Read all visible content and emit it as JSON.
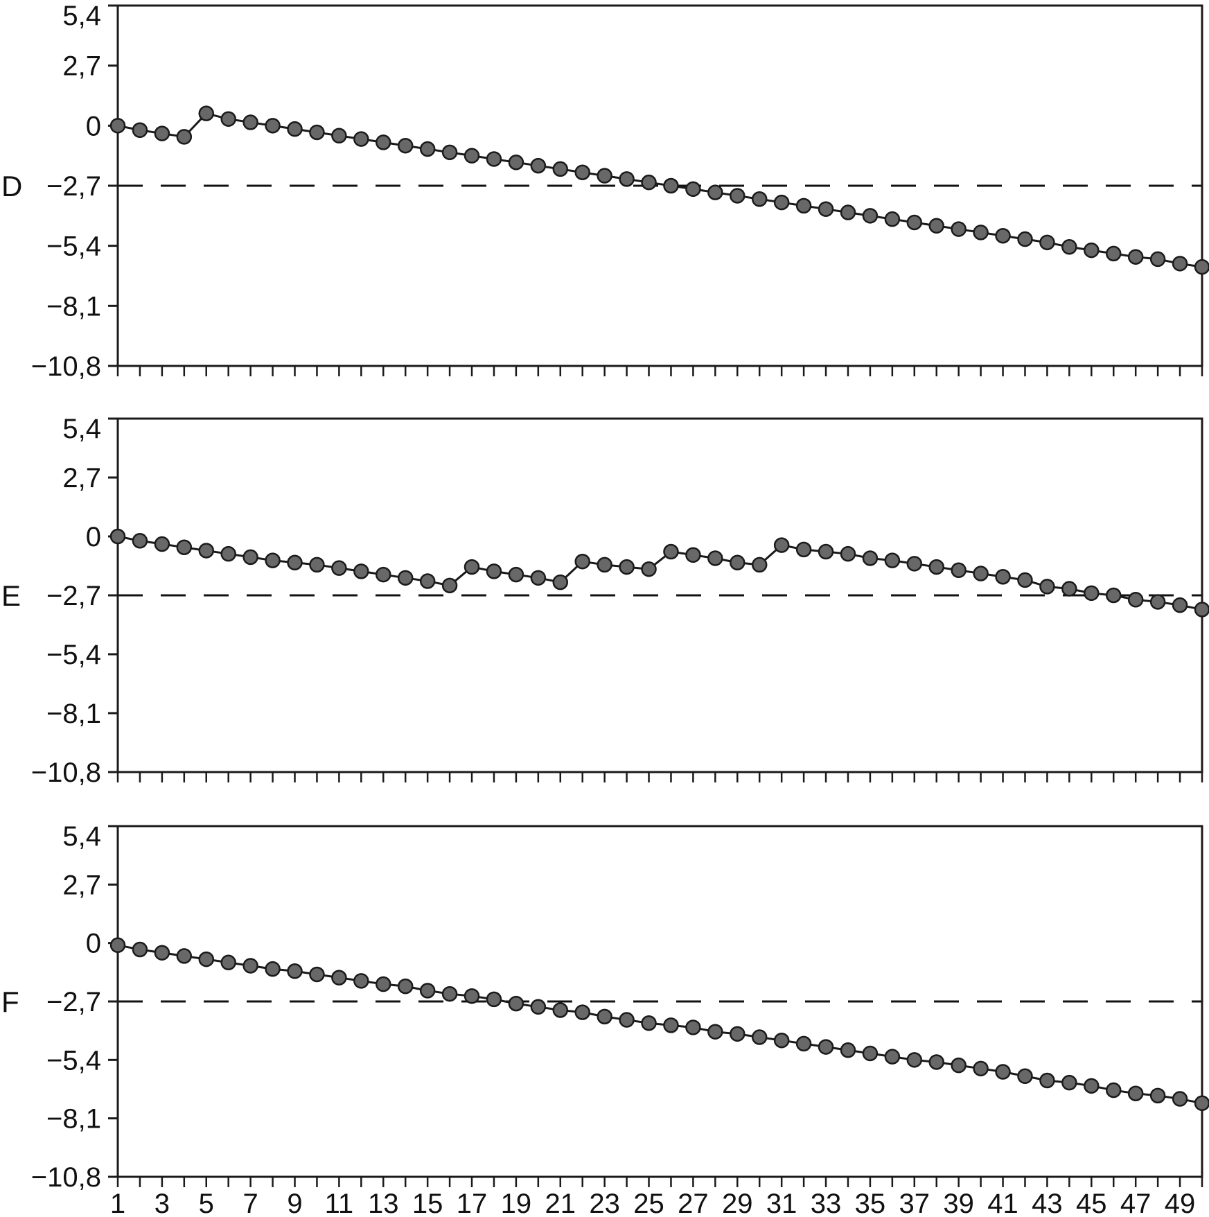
{
  "style": {
    "background": "#ffffff",
    "axis_color": "#1a1a1a",
    "line_color": "#1a1a1a",
    "marker_fill": "#686868",
    "marker_stroke": "#1a1a1a",
    "reference_line_color": "#111111",
    "text_color": "#111111"
  },
  "chart_data": [
    {
      "type": "line",
      "panel_label": "D",
      "marker": "circle",
      "grid": false,
      "legend": "none",
      "x_range": [
        1,
        50
      ],
      "ylim": [
        -10.8,
        5.4
      ],
      "y_ticks": [
        5.4,
        2.7,
        0,
        -2.7,
        -5.4,
        -8.1,
        -10.8
      ],
      "y_tick_labels": [
        "5,4",
        "2,7",
        "0",
        "−2,7",
        "−5,4",
        "−8,1",
        "−10,8"
      ],
      "reference_line": {
        "y": -2.7,
        "style": "dashed"
      },
      "show_x_labels": false,
      "x_label_values": [],
      "values": [
        0,
        -0.2,
        -0.35,
        -0.5,
        0.55,
        0.3,
        0.15,
        0,
        -0.15,
        -0.3,
        -0.45,
        -0.6,
        -0.75,
        -0.9,
        -1.05,
        -1.2,
        -1.35,
        -1.5,
        -1.65,
        -1.8,
        -1.95,
        -2.1,
        -2.25,
        -2.4,
        -2.55,
        -2.7,
        -2.85,
        -3.0,
        -3.15,
        -3.3,
        -3.45,
        -3.6,
        -3.75,
        -3.9,
        -4.05,
        -4.2,
        -4.35,
        -4.5,
        -4.65,
        -4.8,
        -4.95,
        -5.1,
        -5.25,
        -5.45,
        -5.6,
        -5.75,
        -5.9,
        -6.0,
        -6.2,
        -6.35
      ]
    },
    {
      "type": "line",
      "panel_label": "E",
      "marker": "circle",
      "grid": false,
      "legend": "none",
      "x_range": [
        1,
        50
      ],
      "ylim": [
        -10.8,
        5.4
      ],
      "y_ticks": [
        5.4,
        2.7,
        0,
        -2.7,
        -5.4,
        -8.1,
        -10.8
      ],
      "y_tick_labels": [
        "5,4",
        "2,7",
        "0",
        "−2,7",
        "−5,4",
        "−8,1",
        "−10,8"
      ],
      "reference_line": {
        "y": -2.7,
        "style": "dashed"
      },
      "show_x_labels": false,
      "x_label_values": [],
      "values": [
        0,
        -0.2,
        -0.35,
        -0.5,
        -0.65,
        -0.8,
        -0.95,
        -1.1,
        -1.2,
        -1.3,
        -1.45,
        -1.6,
        -1.75,
        -1.9,
        -2.05,
        -2.25,
        -1.4,
        -1.6,
        -1.75,
        -1.9,
        -2.1,
        -1.15,
        -1.3,
        -1.4,
        -1.5,
        -0.7,
        -0.85,
        -1.0,
        -1.2,
        -1.3,
        -0.4,
        -0.6,
        -0.7,
        -0.8,
        -1.0,
        -1.1,
        -1.25,
        -1.4,
        -1.55,
        -1.7,
        -1.85,
        -2.0,
        -2.3,
        -2.4,
        -2.6,
        -2.7,
        -2.9,
        -3.0,
        -3.15,
        -3.35
      ]
    },
    {
      "type": "line",
      "panel_label": "F",
      "marker": "circle",
      "grid": false,
      "legend": "none",
      "x_range": [
        1,
        50
      ],
      "ylim": [
        -10.8,
        5.4
      ],
      "y_ticks": [
        5.4,
        2.7,
        0,
        -2.7,
        -5.4,
        -8.1,
        -10.8
      ],
      "y_tick_labels": [
        "5,4",
        "2,7",
        "0",
        "−2,7",
        "−5,4",
        "−8,1",
        "−10,8"
      ],
      "reference_line": {
        "y": -2.7,
        "style": "dashed"
      },
      "show_x_labels": true,
      "x_label_values": [
        "1",
        "3",
        "5",
        "7",
        "9",
        "11",
        "13",
        "15",
        "17",
        "19",
        "21",
        "23",
        "25",
        "27",
        "29",
        "31",
        "33",
        "35",
        "37",
        "39",
        "41",
        "43",
        "45",
        "47",
        "49"
      ],
      "values": [
        -0.1,
        -0.3,
        -0.45,
        -0.6,
        -0.75,
        -0.9,
        -1.05,
        -1.2,
        -1.3,
        -1.45,
        -1.6,
        -1.75,
        -1.9,
        -2.0,
        -2.2,
        -2.35,
        -2.45,
        -2.6,
        -2.8,
        -2.95,
        -3.1,
        -3.2,
        -3.4,
        -3.55,
        -3.7,
        -3.8,
        -3.9,
        -4.1,
        -4.2,
        -4.35,
        -4.5,
        -4.65,
        -4.8,
        -4.95,
        -5.1,
        -5.25,
        -5.4,
        -5.5,
        -5.65,
        -5.8,
        -5.95,
        -6.15,
        -6.35,
        -6.45,
        -6.6,
        -6.8,
        -6.95,
        -7.05,
        -7.2,
        -7.4
      ]
    }
  ]
}
